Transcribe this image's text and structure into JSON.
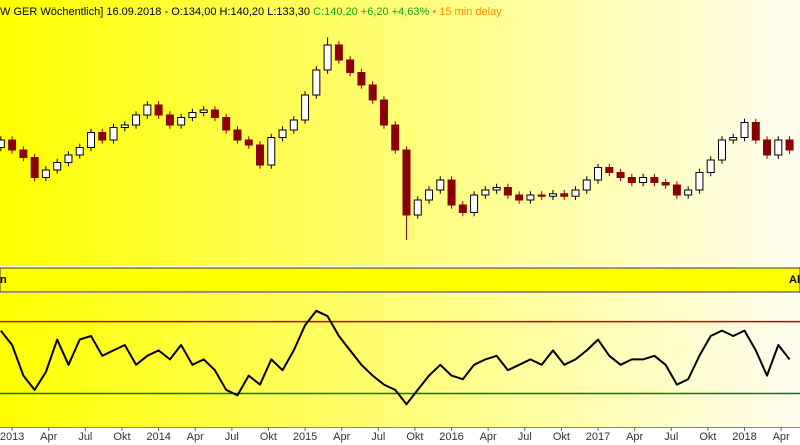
{
  "chart_data": [
    {
      "type": "candlestick",
      "title_parts": [
        {
          "text": "W GER Wöchentlich] 16.09.2018 - O:134,00 H:140,20 L:133,30 ",
          "color": "#000000"
        },
        {
          "text": "C:140,20 +6,20 +4,63%",
          "color": "#1aa01a"
        },
        {
          "text": " • 15 min delay",
          "color": "#ff8c00"
        }
      ],
      "up_color": "#000000",
      "down_color": "#8b0000",
      "xlim": [
        -4.3,
        279.7
      ],
      "ylim": [
        58,
        270
      ],
      "x": [
        -4,
        0,
        4,
        8,
        12,
        16,
        20,
        24,
        28,
        32,
        36,
        40,
        44,
        48,
        52,
        56,
        60,
        64,
        68,
        72,
        76,
        80,
        84,
        88,
        92,
        96,
        100,
        104,
        108,
        112,
        116,
        120,
        124,
        128,
        132,
        136,
        140,
        144,
        148,
        152,
        156,
        160,
        164,
        168,
        172,
        176,
        180,
        184,
        188,
        192,
        196,
        200,
        204,
        208,
        212,
        216,
        220,
        224,
        228,
        232,
        236,
        240,
        244,
        248,
        252,
        256,
        260,
        264,
        268,
        272,
        276
      ],
      "open": [
        152,
        158,
        150,
        144,
        128,
        134,
        140,
        146,
        152,
        164,
        158,
        168,
        170,
        178,
        186,
        178,
        170,
        176,
        180,
        182,
        176,
        166,
        158,
        154,
        138,
        160,
        166,
        174,
        194,
        214,
        234,
        222,
        212,
        202,
        190,
        170,
        150,
        98,
        110,
        118,
        126,
        106,
        100,
        114,
        118,
        120,
        114,
        110,
        114,
        113,
        115,
        113,
        118,
        126,
        136,
        132,
        128,
        124,
        128,
        124,
        122,
        114,
        118,
        132,
        142,
        158,
        160,
        172,
        158,
        146,
        158
      ],
      "high": [
        161,
        161,
        153,
        147,
        137,
        143,
        149,
        155,
        167,
        167,
        171,
        173,
        181,
        189,
        189,
        181,
        179,
        183,
        185,
        185,
        179,
        169,
        161,
        157,
        163,
        169,
        177,
        197,
        217,
        240,
        237,
        225,
        215,
        205,
        193,
        173,
        153,
        113,
        121,
        129,
        129,
        109,
        117,
        121,
        123,
        123,
        117,
        117,
        117,
        118,
        118,
        121,
        129,
        139,
        139,
        135,
        131,
        131,
        131,
        127,
        125,
        121,
        135,
        145,
        161,
        163,
        175,
        175,
        161,
        161,
        161
      ],
      "low": [
        149,
        147,
        141,
        125,
        125,
        131,
        137,
        143,
        149,
        155,
        155,
        165,
        167,
        175,
        175,
        167,
        167,
        173,
        177,
        173,
        163,
        155,
        151,
        135,
        135,
        157,
        163,
        171,
        191,
        211,
        219,
        209,
        199,
        187,
        167,
        147,
        78,
        95,
        107,
        115,
        103,
        97,
        97,
        111,
        115,
        111,
        107,
        107,
        110,
        110,
        110,
        110,
        115,
        123,
        129,
        125,
        121,
        121,
        121,
        119,
        111,
        111,
        115,
        129,
        139,
        155,
        157,
        155,
        143,
        143,
        147
      ],
      "close": [
        158,
        150,
        144,
        128,
        134,
        140,
        146,
        152,
        164,
        158,
        168,
        170,
        178,
        186,
        178,
        170,
        176,
        180,
        182,
        176,
        166,
        158,
        154,
        138,
        160,
        166,
        174,
        194,
        214,
        234,
        222,
        212,
        202,
        190,
        170,
        150,
        98,
        110,
        118,
        126,
        106,
        100,
        114,
        118,
        120,
        114,
        110,
        114,
        113,
        115,
        113,
        118,
        126,
        136,
        132,
        128,
        124,
        128,
        124,
        122,
        114,
        118,
        132,
        142,
        158,
        160,
        172,
        158,
        146,
        158,
        150
      ]
    },
    {
      "type": "line",
      "label_left": "n",
      "label_right": "Al",
      "color": "#000000",
      "levels": [
        {
          "value": 70,
          "color": "#d40000"
        },
        {
          "value": 30,
          "color": "#008000"
        }
      ],
      "xlim": [
        -4.3,
        279.7
      ],
      "ylim": [
        11.4,
        85.9
      ],
      "xticks": [
        {
          "value": 0,
          "label": "2013"
        },
        {
          "value": 13,
          "label": "Apr"
        },
        {
          "value": 26,
          "label": "Jul"
        },
        {
          "value": 39,
          "label": "Okt"
        },
        {
          "value": 52,
          "label": "2014"
        },
        {
          "value": 65,
          "label": "Apr"
        },
        {
          "value": 78,
          "label": "Jul"
        },
        {
          "value": 91,
          "label": "Okt"
        },
        {
          "value": 104,
          "label": "2015"
        },
        {
          "value": 117,
          "label": "Apr"
        },
        {
          "value": 130,
          "label": "Jul"
        },
        {
          "value": 143,
          "label": "Okt"
        },
        {
          "value": 156,
          "label": "2016"
        },
        {
          "value": 169,
          "label": "Apr"
        },
        {
          "value": 182,
          "label": "Jul"
        },
        {
          "value": 195,
          "label": "Okt"
        },
        {
          "value": 208,
          "label": "2017"
        },
        {
          "value": 221,
          "label": "Apr"
        },
        {
          "value": 234,
          "label": "Jul"
        },
        {
          "value": 247,
          "label": "Okt"
        },
        {
          "value": 260,
          "label": "2018"
        },
        {
          "value": 273,
          "label": "Apr"
        }
      ],
      "x": [
        -4,
        0,
        4,
        8,
        12,
        16,
        20,
        24,
        28,
        32,
        36,
        40,
        44,
        48,
        52,
        56,
        60,
        64,
        68,
        72,
        76,
        80,
        84,
        88,
        92,
        96,
        100,
        104,
        108,
        112,
        116,
        120,
        124,
        128,
        132,
        136,
        140,
        144,
        148,
        152,
        156,
        160,
        164,
        168,
        172,
        176,
        180,
        184,
        188,
        192,
        196,
        200,
        204,
        208,
        212,
        216,
        220,
        224,
        228,
        232,
        236,
        240,
        244,
        248,
        252,
        256,
        260,
        264,
        268,
        272,
        276
      ],
      "values": [
        65,
        57,
        40,
        32,
        42,
        60,
        46,
        60,
        62,
        51,
        54,
        57,
        46,
        51,
        54,
        49,
        57,
        46,
        49,
        43,
        32,
        29,
        40,
        35,
        49,
        43,
        54,
        68,
        76,
        73,
        62,
        54,
        46,
        40,
        35,
        32,
        24,
        32,
        40,
        46,
        40,
        38,
        46,
        49,
        51,
        43,
        46,
        49,
        46,
        54,
        46,
        49,
        54,
        60,
        51,
        46,
        49,
        49,
        51,
        46,
        35,
        38,
        51,
        62,
        65,
        62,
        65,
        54,
        40,
        57,
        49
      ]
    }
  ]
}
